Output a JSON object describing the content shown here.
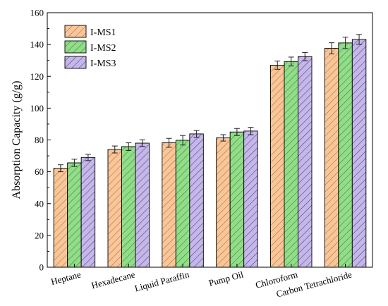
{
  "chart_data": {
    "type": "bar",
    "title": "",
    "xlabel": "",
    "ylabel": "Absorption Capacity (g/g)",
    "ylim": [
      0,
      160
    ],
    "yticks": [
      0,
      20,
      40,
      60,
      80,
      100,
      120,
      140,
      160
    ],
    "categories": [
      "Heptane",
      "Hexadecane",
      "Liquid Paraffin",
      "Pump Oil",
      "Chloroform",
      "Carbon Tetrachloride"
    ],
    "series": [
      {
        "name": "I-MS1",
        "fill": "#f7c79a",
        "hatch": "#c0642a",
        "values": [
          62.2,
          74,
          78.2,
          81.3,
          127,
          137.6
        ],
        "errors": [
          2.2,
          2.2,
          2.8,
          2.0,
          2.6,
          3.5
        ]
      },
      {
        "name": "I-MS2",
        "fill": "#92dc8a",
        "hatch": "#2f8a2a",
        "values": [
          65.6,
          75.8,
          79.8,
          85,
          129.3,
          141
        ],
        "errors": [
          2.3,
          2.4,
          3.0,
          2.2,
          2.8,
          3.6
        ]
      },
      {
        "name": "I-MS3",
        "fill": "#c5b7e8",
        "hatch": "#4a3a8a",
        "values": [
          69,
          78,
          83.8,
          85.6,
          132.4,
          143.2
        ],
        "errors": [
          2.0,
          2.1,
          2.1,
          2.3,
          2.6,
          3.1
        ]
      }
    ],
    "legend_position": "top-left",
    "grid": false
  }
}
